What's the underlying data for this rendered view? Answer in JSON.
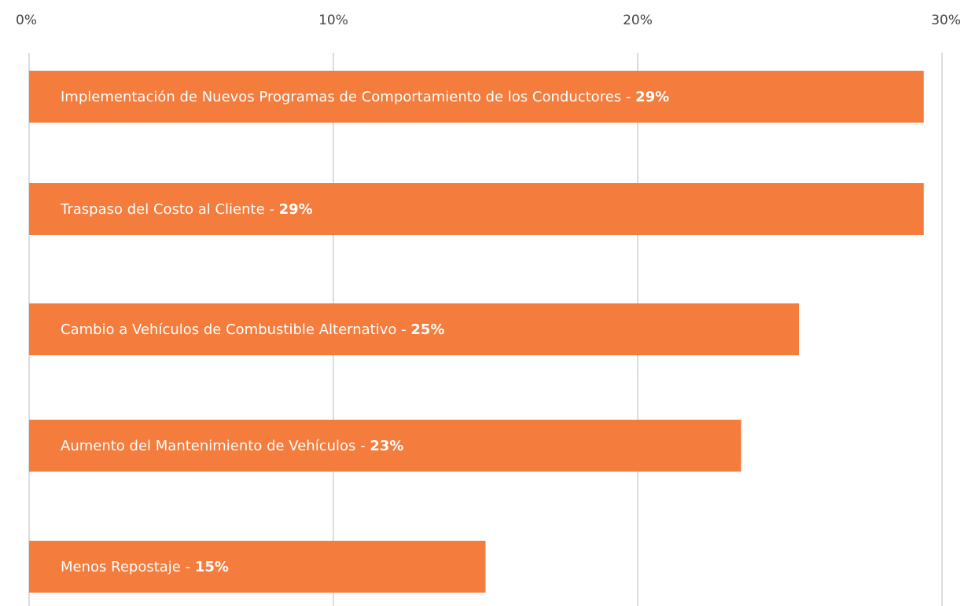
{
  "chart_data": {
    "type": "bar",
    "orientation": "horizontal",
    "categories": [
      "Implementación de Nuevos Programas de Comportamiento de los Conductores",
      "Traspaso del Costo al Cliente",
      "Cambio a Vehículos de Combustible Alternativo",
      "Aumento del Mantenimiento de Vehículos",
      "Menos Repostaje"
    ],
    "values": [
      29.4,
      29.4,
      25.3,
      23.4,
      15.0
    ],
    "value_labels": [
      "29%",
      "29%",
      "25%",
      "23%",
      "15%"
    ],
    "label_separator": " - ",
    "color": "#f47c3c",
    "xlim": [
      0,
      30
    ],
    "xticks": [
      {
        "value": 0,
        "label": "0%"
      },
      {
        "value": 10,
        "label": "10%"
      },
      {
        "value": 20,
        "label": "20%"
      },
      {
        "value": 30,
        "label": "30%"
      }
    ],
    "grid": true
  }
}
